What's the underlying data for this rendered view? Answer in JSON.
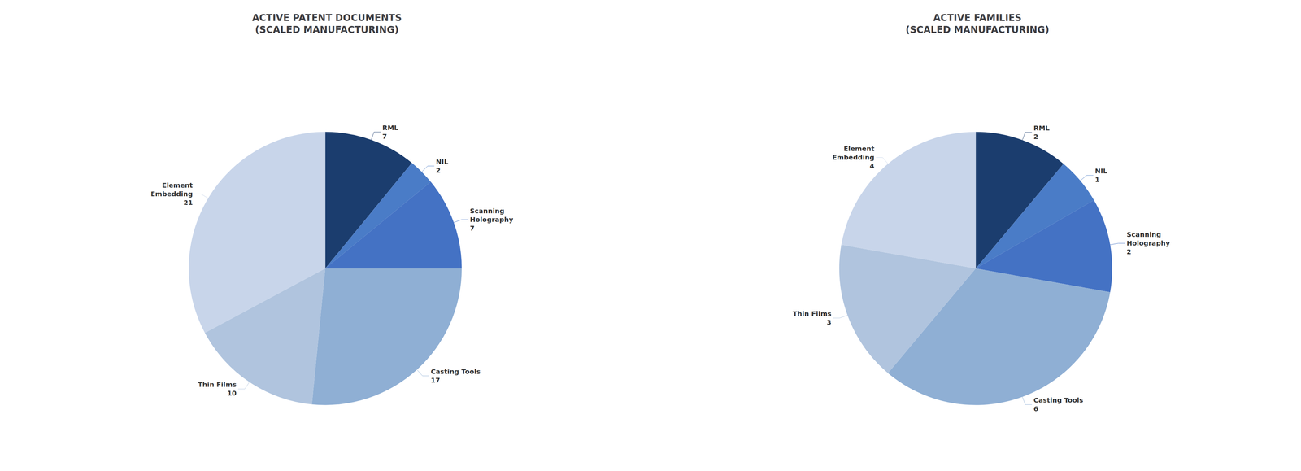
{
  "chart_data": [
    {
      "type": "pie",
      "title": "ACTIVE PATENT DOCUMENTS\n(SCALED MANUFACTURING)",
      "categories": [
        "RML",
        "NIL",
        "Scanning\nHolography",
        "Casting Tools",
        "Thin Films",
        "Element\nEmbedding"
      ],
      "values": [
        7,
        2,
        7,
        17,
        10,
        21
      ],
      "colors": [
        "#1b3d6e",
        "#4a7cc7",
        "#4472c4",
        "#8fafd4",
        "#b0c4de",
        "#c8d5ea"
      ],
      "data_labels": true
    },
    {
      "type": "pie",
      "title": "ACTIVE FAMILIES\n(SCALED MANUFACTURING)",
      "categories": [
        "RML",
        "NIL",
        "Scanning\nHolography",
        "Casting Tools",
        "Thin Films",
        "Element\nEmbedding"
      ],
      "values": [
        2,
        1,
        2,
        6,
        3,
        4
      ],
      "colors": [
        "#1b3d6e",
        "#4a7cc7",
        "#4472c4",
        "#8fafd4",
        "#b0c4de",
        "#c8d5ea"
      ],
      "data_labels": true
    }
  ]
}
